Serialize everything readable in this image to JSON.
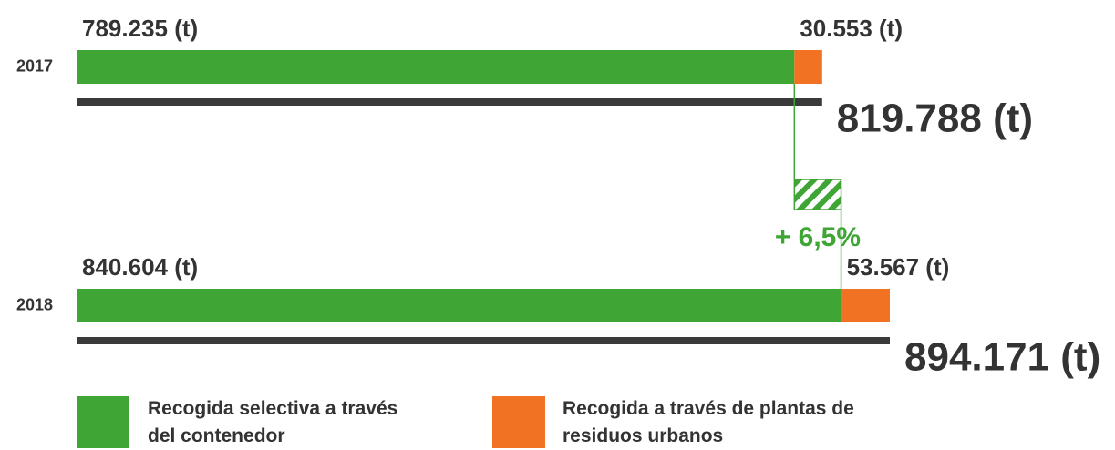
{
  "chart_data": {
    "type": "bar",
    "orientation": "horizontal",
    "categories": [
      "2017",
      "2018"
    ],
    "series": [
      {
        "name": "Recogida selectiva a través del contenedor",
        "color": "#3fa535",
        "values": [
          789235,
          840604
        ],
        "value_labels": [
          "789.235 (t)",
          "840.604 (t)"
        ]
      },
      {
        "name": "Recogida a través de plantas de residuos urbanos",
        "color": "#f07222",
        "values": [
          30553,
          53567
        ],
        "value_labels": [
          "30.553 (t)",
          "53.567 (t)"
        ]
      }
    ],
    "totals": {
      "color": "#3a3a3a",
      "values": [
        819788,
        894171
      ],
      "value_labels": [
        "819.788 (t)",
        "894.171 (t)"
      ]
    },
    "change": {
      "value": 6.5,
      "label": "+ 6,5%",
      "color": "#3fa535"
    }
  }
}
